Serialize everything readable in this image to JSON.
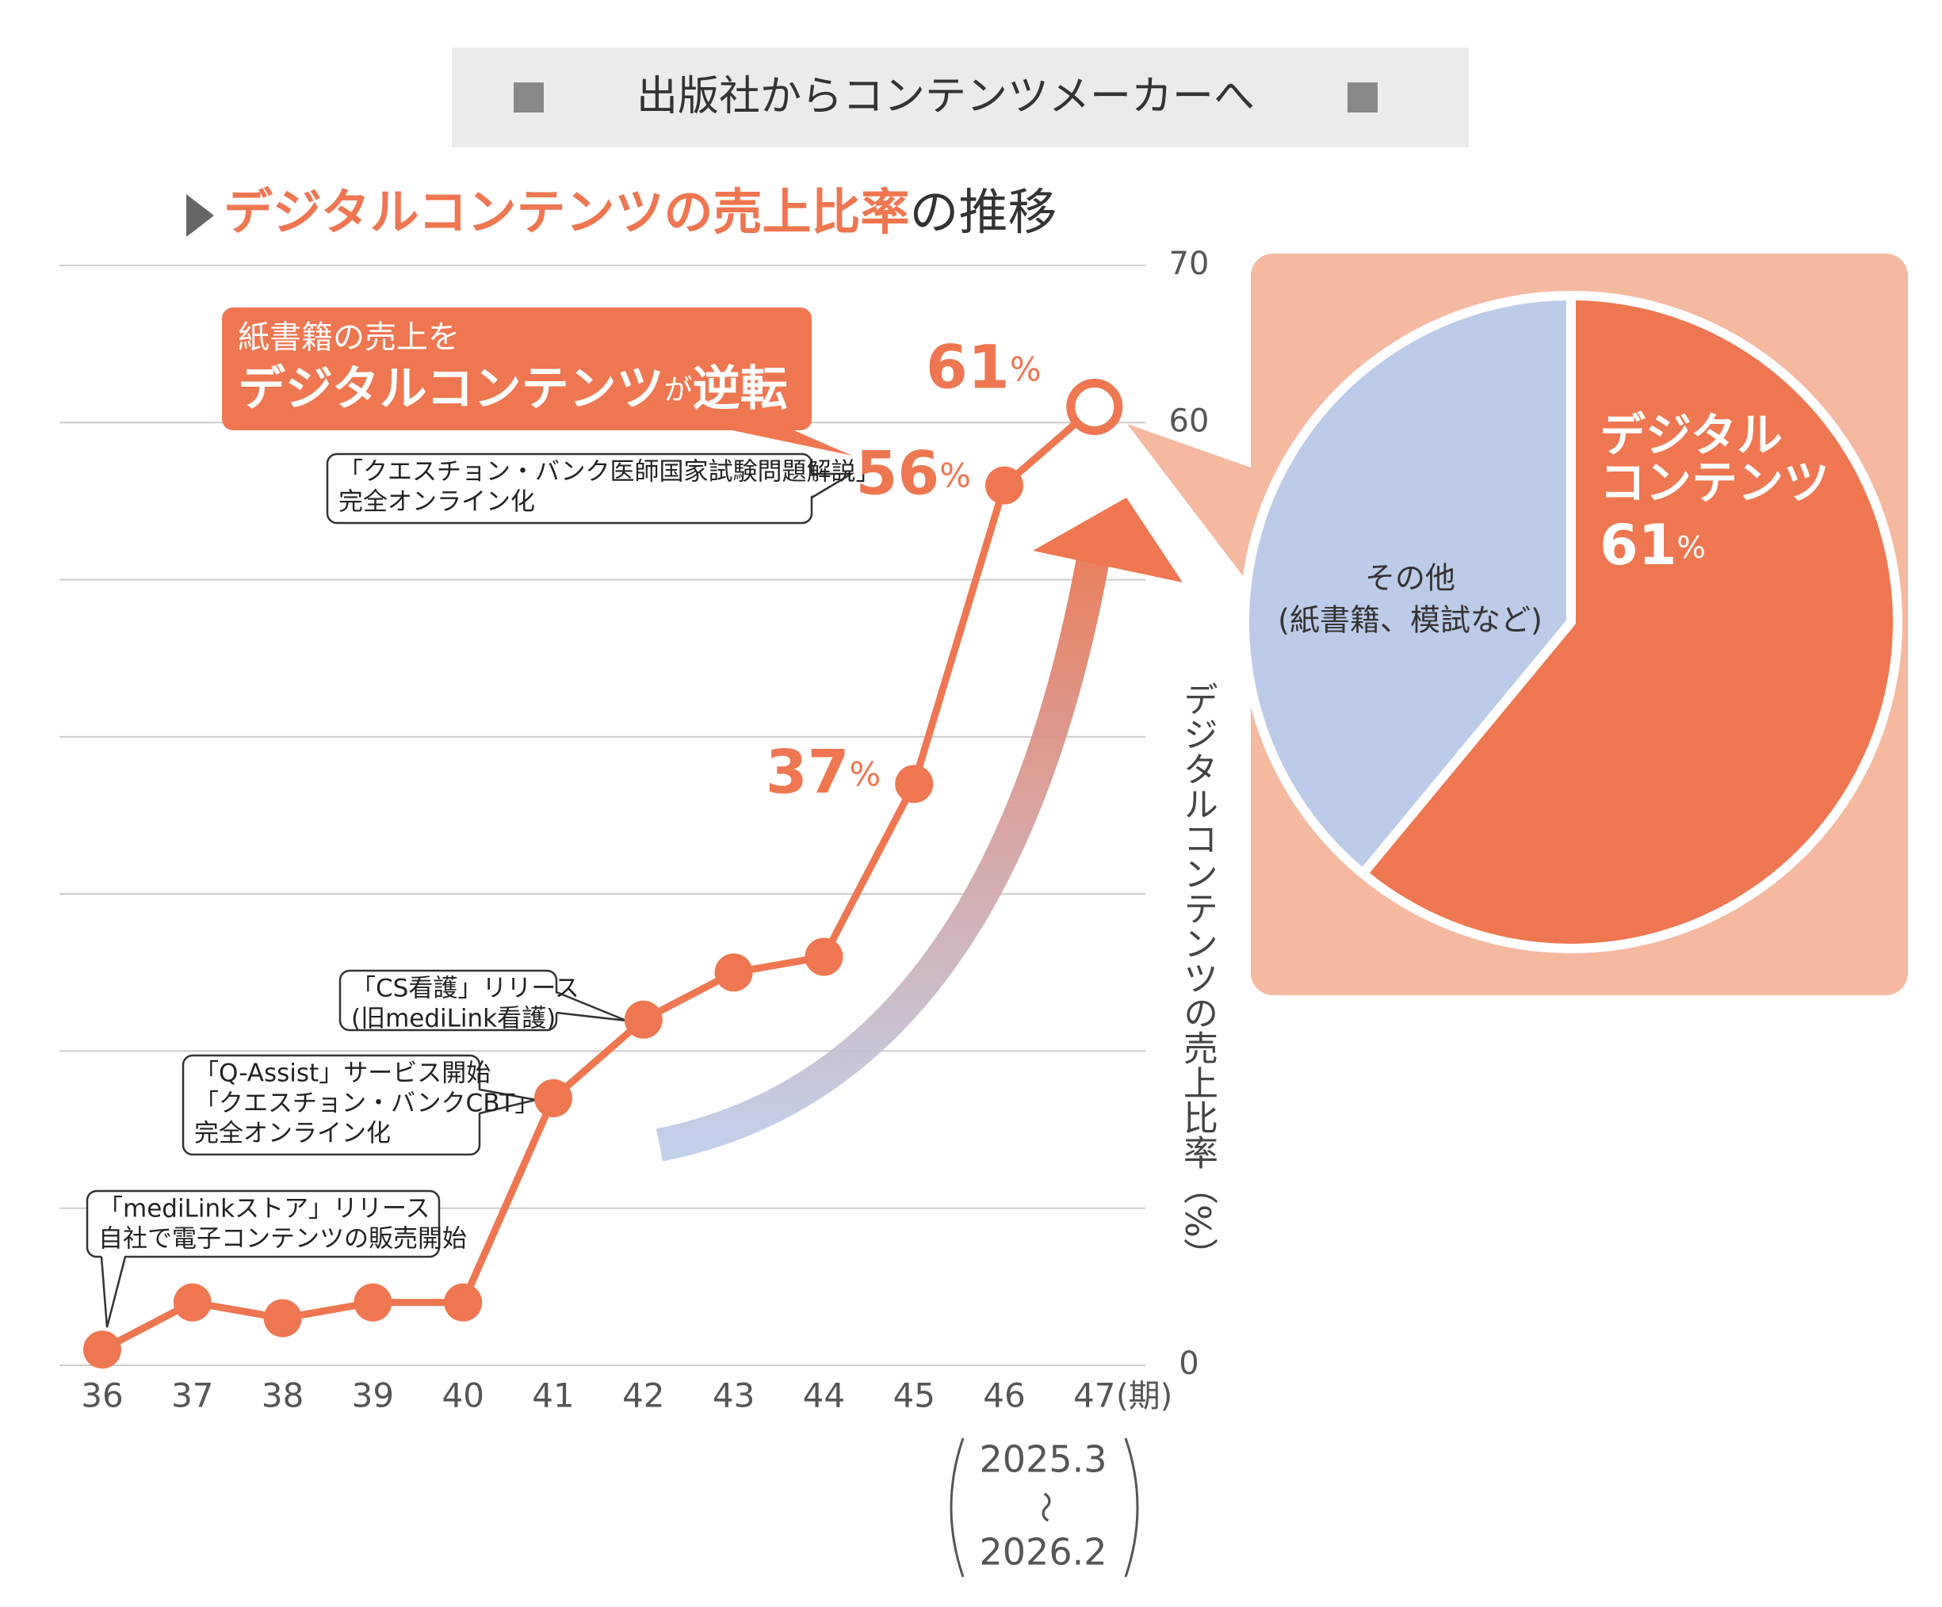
{
  "header": "出版社からコンテンツメーカーへ",
  "chart_data": [
    {
      "type": "line",
      "title_highlight": "デジタルコンテンツの売上比率",
      "title_suffix": "の推移",
      "y_label": "デジタルコンテンツの売上比率（%）",
      "x_unit": "(期)",
      "period": [
        "2025.3",
        "〜",
        "2026.2"
      ],
      "categories": [
        "36",
        "37",
        "38",
        "39",
        "40",
        "41",
        "42",
        "43",
        "44",
        "45",
        "46",
        "47"
      ],
      "series": [
        {
          "color": "#ee7650",
          "values": [
            1,
            4,
            3,
            4,
            4,
            17,
            22,
            25,
            26,
            37,
            56,
            61
          ],
          "value_labels": [
            null,
            null,
            null,
            null,
            null,
            null,
            null,
            null,
            null,
            "37%",
            "56%",
            "61%"
          ]
        }
      ],
      "ylim": [
        0,
        70
      ],
      "yticks": [
        0,
        60,
        70
      ],
      "grid_lines": [
        10,
        20,
        30,
        40,
        50
      ],
      "grid": true,
      "callout": {
        "line1": "紙書籍の売上を",
        "line2": [
          "デジタルコンテンツ",
          "が",
          "逆転"
        ]
      },
      "annotations": [
        {
          "lines": [
            "「クエスチョン・バンク医師国家試験問題解説」",
            "完全オンライン化"
          ]
        },
        {
          "lines": [
            "「CS看護」リリース",
            "(旧mediLink看護)"
          ]
        },
        {
          "lines": [
            "「Q-Assist」サービス開始",
            "「クエスチョン・バンクCBT」",
            "完全オンライン化"
          ]
        },
        {
          "lines": [
            "「mediLinkストア」リリース",
            "自社で電子コンテンツの販売開始"
          ]
        }
      ]
    },
    {
      "type": "pie",
      "labels": [
        [
          "デジタル",
          "コンテンツ"
        ],
        [
          "その他",
          "(紙書籍、模試など)"
        ]
      ],
      "values": [
        61,
        39
      ],
      "value_labels": [
        "61%",
        null
      ],
      "colors": [
        "#ee7650",
        "#bccbe9"
      ]
    }
  ]
}
